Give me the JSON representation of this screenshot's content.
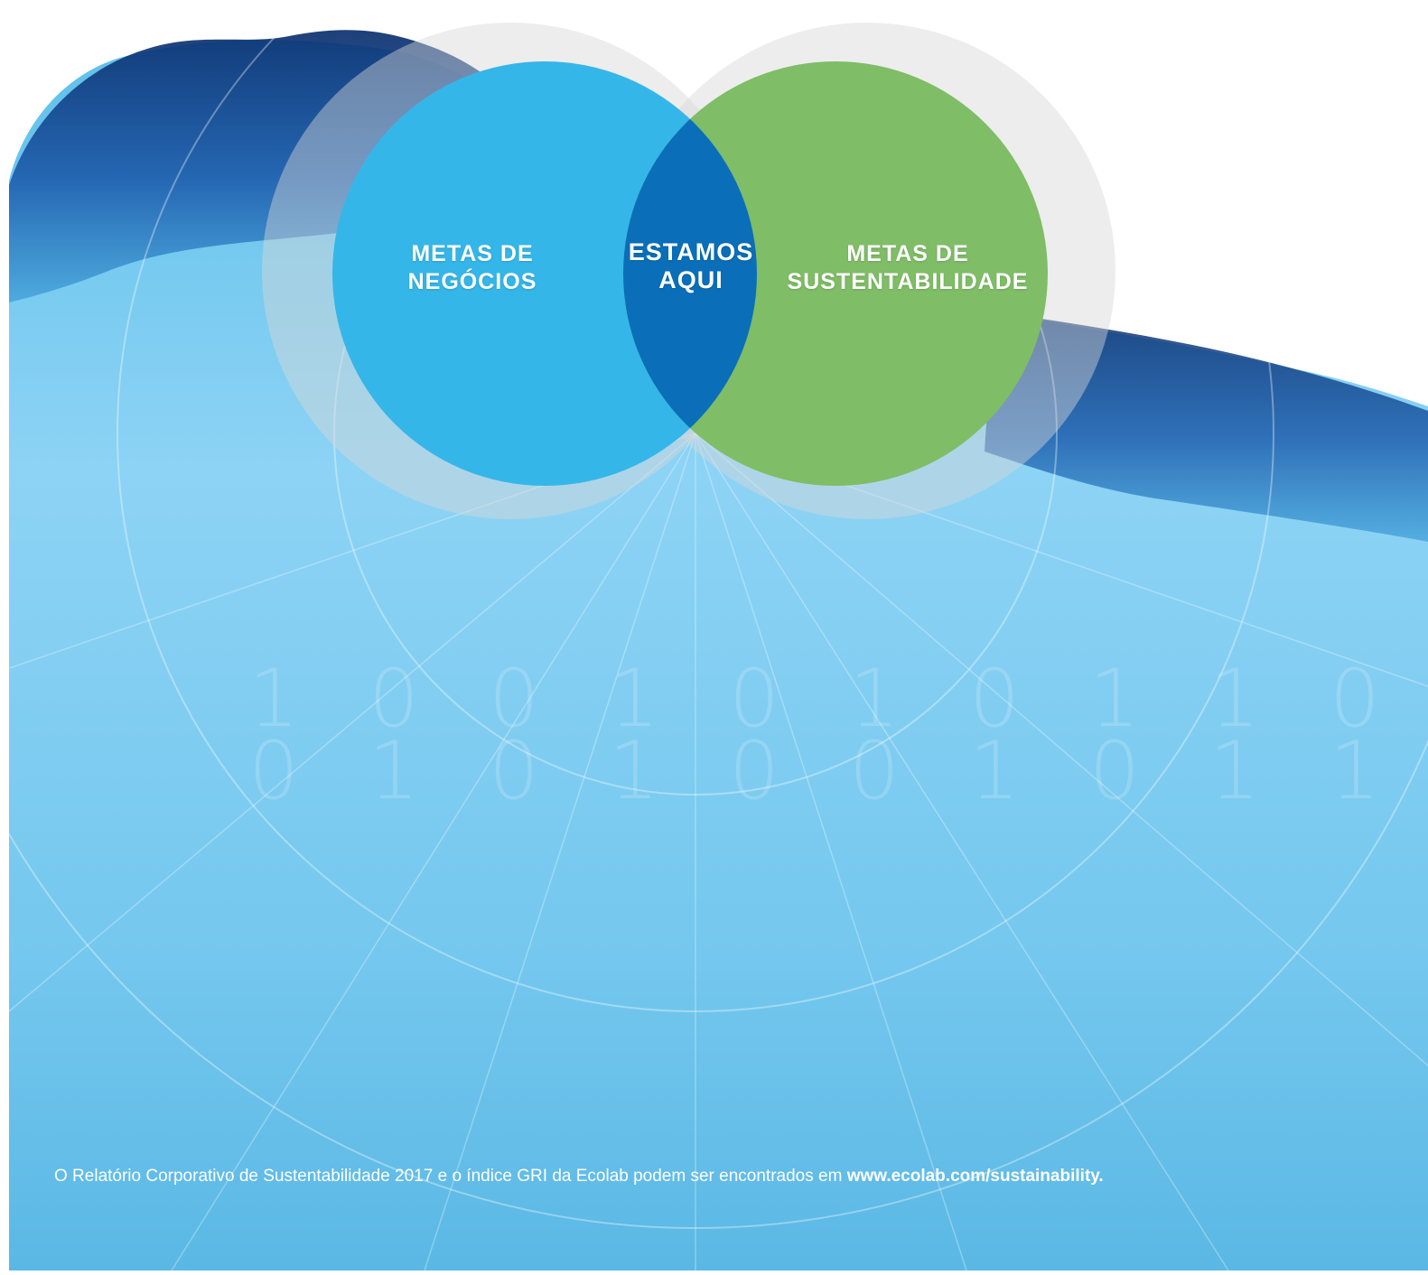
{
  "venn": {
    "left": {
      "line1": "METAS DE",
      "line2": "NEGÓCIOS",
      "color": "#35b6e8"
    },
    "center": {
      "line1": "ESTAMOS",
      "line2": "AQUI",
      "color": "#0a6fb8"
    },
    "right": {
      "line1": "METAS DE",
      "line2": "SUSTENTABILIDADE",
      "color": "#7fbd67"
    }
  },
  "binary": {
    "row1": [
      "1",
      "0",
      "0",
      "1",
      "0",
      "1",
      "0",
      "1",
      "1",
      "0"
    ],
    "row2": [
      "0",
      "1",
      "0",
      "1",
      "0",
      "0",
      "1",
      "0",
      "1",
      "1"
    ]
  },
  "footer": {
    "text": "O Relatório Corporativo de Sustentabilidade 2017 e o índice GRI da Ecolab podem ser encontrados em",
    "link": "www.ecolab.com/sustainability."
  },
  "colors": {
    "water_light": "#8fd3f5",
    "water_mid": "#5cbde9",
    "water_dark": "#0d3f85"
  }
}
